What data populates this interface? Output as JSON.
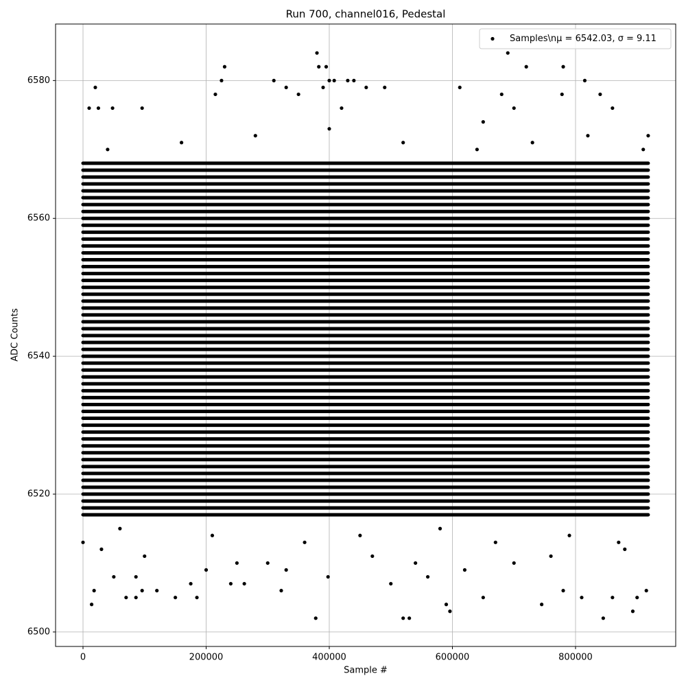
{
  "chart_data": {
    "type": "scatter",
    "title": "Run 700, channel016, Pedestal",
    "xlabel": "Sample #",
    "ylabel": "ADC Counts",
    "xlim": [
      -44570,
      962700
    ],
    "ylim": [
      6497.9,
      6588.2
    ],
    "xticks": [
      0,
      200000,
      400000,
      600000,
      800000
    ],
    "yticks": [
      6500,
      6520,
      6540,
      6560,
      6580
    ],
    "grid": true,
    "legend": "upper right",
    "series": [
      {
        "name": "Samples\\nμ = 6542.03, σ = 9.11",
        "color": "#000000",
        "rows": [
          6517,
          6518,
          6519,
          6520,
          6521,
          6522,
          6523,
          6524,
          6525,
          6526,
          6527,
          6528,
          6529,
          6530,
          6531,
          6532,
          6533,
          6534,
          6535,
          6536,
          6537,
          6538,
          6539,
          6540,
          6541,
          6542,
          6543,
          6544,
          6545,
          6546,
          6547,
          6548,
          6549,
          6550,
          6551,
          6552,
          6553,
          6554,
          6555,
          6556,
          6557,
          6558,
          6559,
          6560,
          6561,
          6562,
          6563,
          6564,
          6565,
          6566,
          6567,
          6568
        ],
        "row_x": [
          0,
          918000
        ],
        "x": [
          14000,
          18000,
          20000,
          10000,
          25000,
          48000,
          96000,
          0,
          70000,
          86000,
          86000,
          96000,
          150000,
          185000,
          215000,
          225000,
          230000,
          240000,
          262000,
          310000,
          322000,
          330000,
          378000,
          380000,
          383000,
          390000,
          395000,
          398000,
          400000,
          408000,
          430000,
          440000,
          460000,
          490000,
          500000,
          520000,
          530000,
          590000,
          596000,
          612000,
          650000,
          680000,
          690000,
          720000,
          745000,
          780000,
          778000,
          780000,
          815000,
          810000,
          840000,
          845000,
          860000,
          893000,
          900000,
          915000,
          918000,
          50000,
          120000,
          300000,
          560000,
          650000,
          700000,
          860000,
          200000,
          420000,
          350000,
          175000,
          30000,
          100000,
          250000,
          330000,
          470000,
          540000,
          620000,
          700000,
          760000,
          880000,
          40000,
          160000,
          280000,
          400000,
          520000,
          640000,
          730000,
          820000,
          910000,
          60000,
          210000,
          360000,
          450000,
          580000,
          670000,
          790000,
          870000
        ],
        "y": [
          6504,
          6506,
          6579,
          6576,
          6576,
          6576,
          6576,
          6513,
          6505,
          6505,
          6508,
          6506,
          6505,
          6505,
          6578,
          6580,
          6582,
          6507,
          6507,
          6580,
          6506,
          6579,
          6502,
          6584,
          6582,
          6579,
          6582,
          6508,
          6580,
          6580,
          6580,
          6580,
          6579,
          6579,
          6507,
          6502,
          6502,
          6504,
          6503,
          6579,
          6505,
          6578,
          6584,
          6582,
          6504,
          6582,
          6578,
          6506,
          6580,
          6505,
          6578,
          6502,
          6505,
          6503,
          6505,
          6506,
          6572,
          6508,
          6506,
          6510,
          6508,
          6574,
          6576,
          6576,
          6509,
          6576,
          6578,
          6507,
          6512,
          6511,
          6510,
          6509,
          6511,
          6510,
          6509,
          6510,
          6511,
          6512,
          6570,
          6571,
          6572,
          6573,
          6571,
          6570,
          6571,
          6572,
          6570,
          6515,
          6514,
          6513,
          6514,
          6515,
          6513,
          6514,
          6513
        ]
      }
    ]
  }
}
